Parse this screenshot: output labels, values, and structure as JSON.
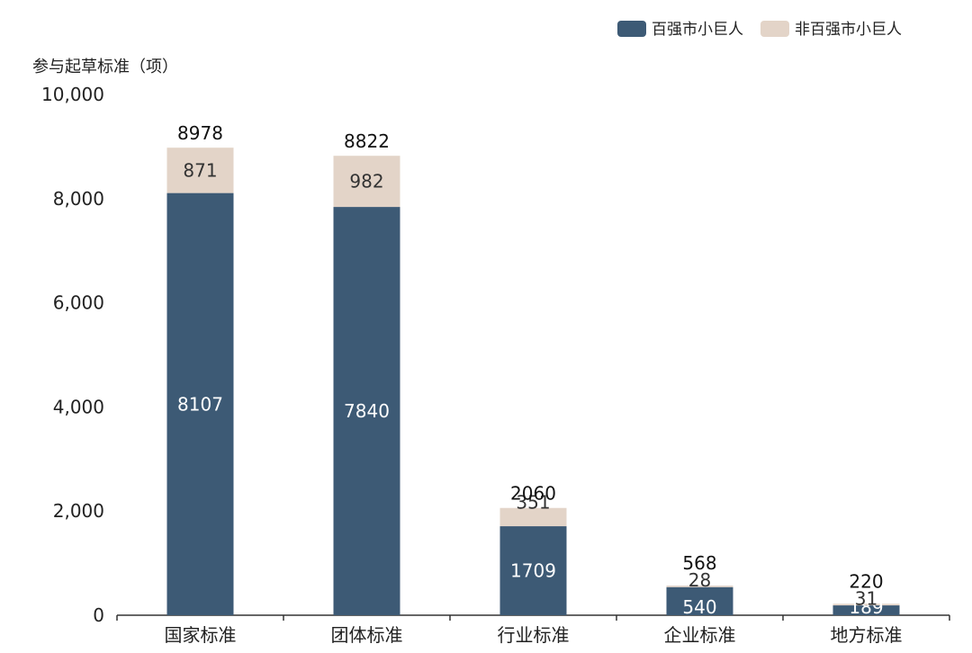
{
  "chart_data": {
    "type": "bar",
    "stacked": true,
    "ylabel": "参与起草标准（项）",
    "ylim": [
      0,
      10000
    ],
    "yticks": [
      "0",
      "2,000",
      "4,000",
      "6,000",
      "8,000",
      "10,000"
    ],
    "ytick_values": [
      0,
      2000,
      4000,
      6000,
      8000,
      10000
    ],
    "categories": [
      "国家标准",
      "团体标准",
      "行业标准",
      "企业标准",
      "地方标准"
    ],
    "series": [
      {
        "name": "百强市小巨人",
        "color": "#3d5a75",
        "label_color": "#ffffff",
        "values": [
          8107,
          7840,
          1709,
          540,
          189
        ]
      },
      {
        "name": "非百强市小巨人",
        "color": "#e3d4c8",
        "label_color": "#333333",
        "values": [
          871,
          982,
          351,
          28,
          31
        ]
      }
    ],
    "totals": [
      8978,
      8822,
      2060,
      568,
      220
    ],
    "legend_position": "top-right",
    "grid": false
  }
}
